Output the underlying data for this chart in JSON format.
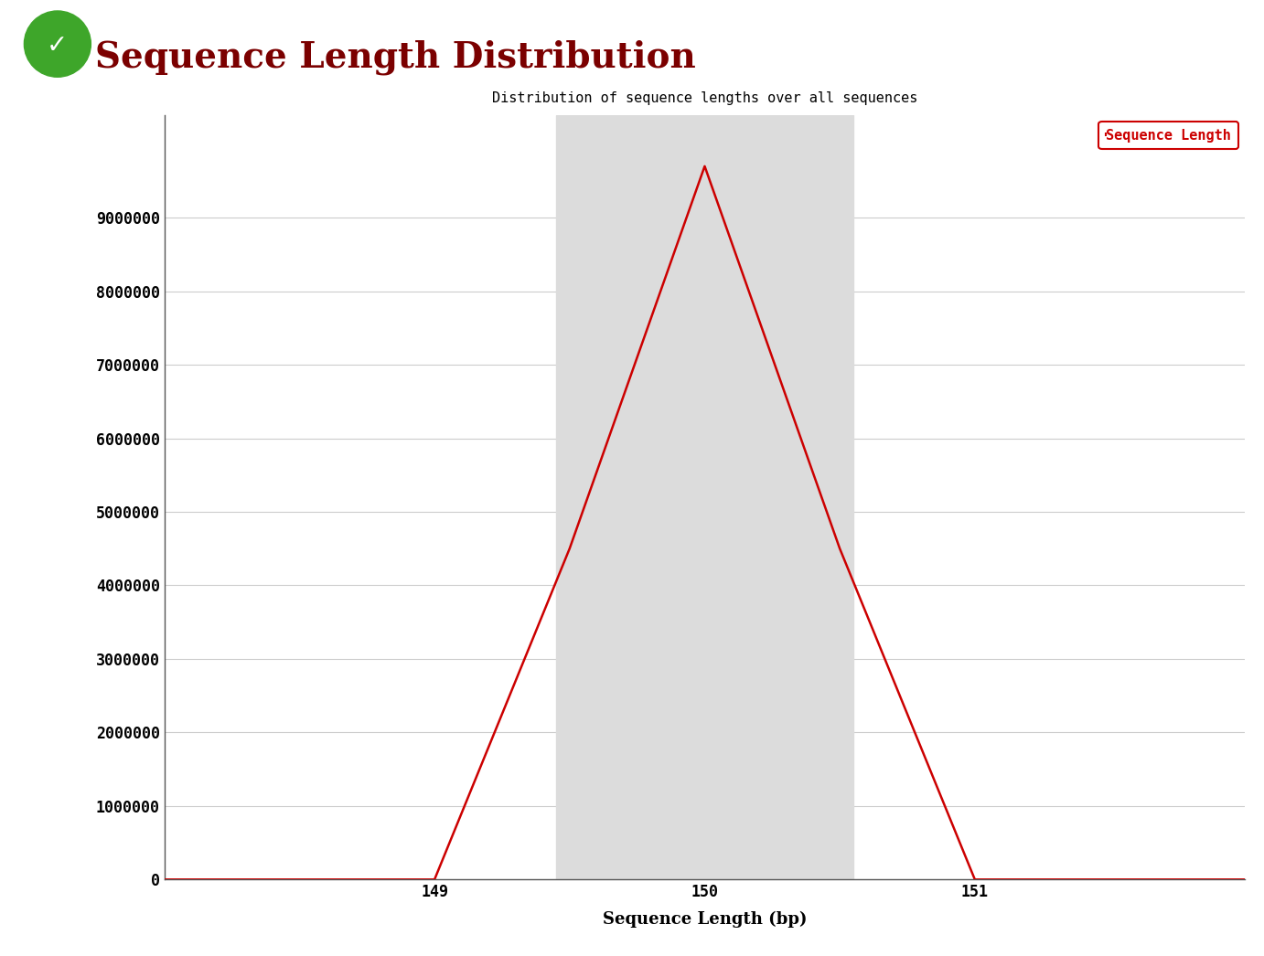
{
  "title": "Sequence Length Distribution",
  "plot_title": "Distribution of sequence lengths over all sequences",
  "xlabel": "Sequence Length (bp)",
  "x_values": [
    148.0,
    149.0,
    149.5,
    150.0,
    150.5,
    151.0,
    152.0
  ],
  "y_values": [
    0,
    0,
    4500000,
    9700000,
    4500000,
    0,
    0
  ],
  "x_ticks": [
    149,
    150,
    151
  ],
  "y_ticks": [
    0,
    1000000,
    2000000,
    3000000,
    4000000,
    5000000,
    6000000,
    7000000,
    8000000,
    9000000
  ],
  "xlim": [
    148.0,
    152.0
  ],
  "ylim": [
    0,
    10400000
  ],
  "line_color": "#cc0000",
  "shade_color": "#dcdcdc",
  "shade_xmin": 149.45,
  "shade_xmax": 150.55,
  "background_color": "#ffffff",
  "grid_color": "#cccccc",
  "legend_label": "Sequence Length",
  "legend_color": "#cc0000",
  "title_color": "#7b0000",
  "title_fontsize": 28,
  "plot_title_fontsize": 11,
  "axis_label_fontsize": 13,
  "tick_fontsize": 12
}
